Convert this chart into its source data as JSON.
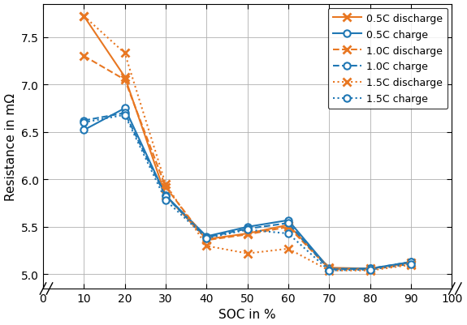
{
  "soc": [
    10,
    20,
    30,
    40,
    50,
    60,
    70,
    80,
    90
  ],
  "series": {
    "0.5C_discharge": [
      7.72,
      7.08,
      5.83,
      5.37,
      5.43,
      5.52,
      5.07,
      5.06,
      5.12
    ],
    "0.5C_charge": [
      6.52,
      6.75,
      5.83,
      5.4,
      5.5,
      5.57,
      5.06,
      5.06,
      5.13
    ],
    "1.0C_discharge": [
      7.3,
      7.05,
      5.92,
      5.36,
      5.42,
      5.5,
      5.06,
      5.05,
      5.11
    ],
    "1.0C_charge": [
      6.62,
      6.7,
      5.82,
      5.39,
      5.48,
      5.54,
      5.05,
      5.06,
      5.13
    ],
    "1.5C_discharge": [
      7.72,
      7.33,
      5.95,
      5.3,
      5.22,
      5.27,
      5.04,
      5.04,
      5.1
    ],
    "1.5C_charge": [
      6.6,
      6.68,
      5.78,
      5.38,
      5.47,
      5.43,
      5.04,
      5.05,
      5.11
    ]
  },
  "colors": {
    "discharge": "#E87722",
    "charge": "#1F77B4"
  },
  "linestyles": {
    "0.5C": "-",
    "1.0C": "--",
    "1.5C": ":"
  },
  "markers": {
    "discharge": "x",
    "charge": "o"
  },
  "legend_labels": [
    "0.5C discharge",
    "0.5C charge",
    "1.0C discharge",
    "1.0C charge",
    "1.5C discharge",
    "1.5C charge"
  ],
  "xlabel": "SOC in %",
  "ylabel": "Resistance in mΩ",
  "xlim": [
    0,
    100
  ],
  "ylim": [
    4.85,
    7.85
  ],
  "yticks": [
    5.0,
    5.5,
    6.0,
    6.5,
    7.0,
    7.5
  ],
  "xticks": [
    0,
    10,
    20,
    30,
    40,
    50,
    60,
    70,
    80,
    90,
    100
  ],
  "background_color": "#ffffff",
  "grid_color": "#b0b0b0"
}
